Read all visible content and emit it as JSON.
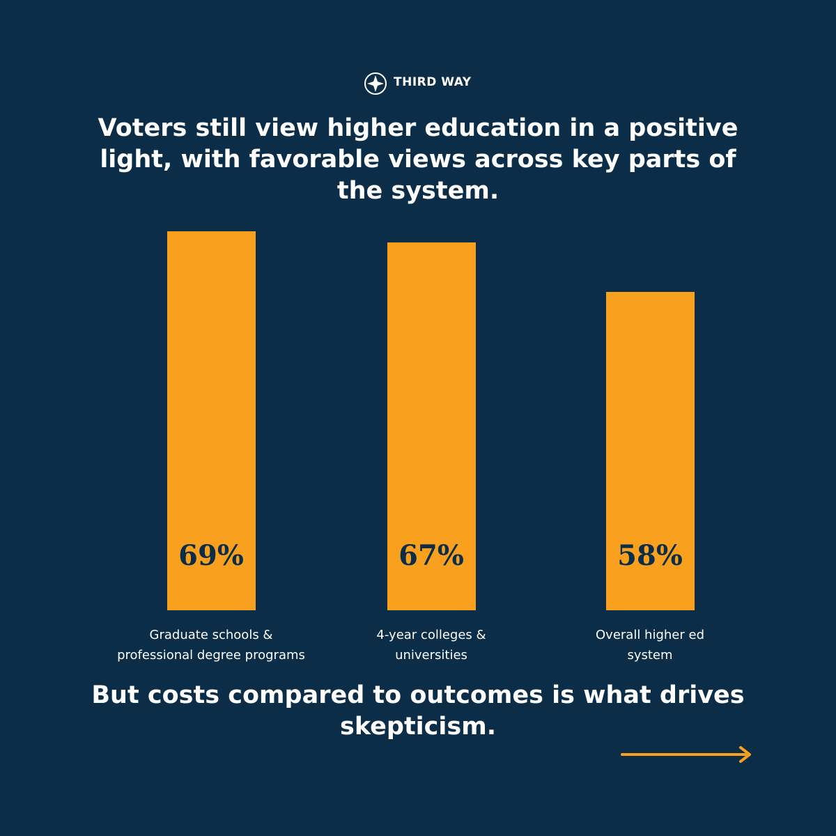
{
  "chart_data": {
    "type": "bar",
    "brand": "THIRD WAY",
    "title": "Voters still view higher education in a positive light, with favorable views across key parts of the system.",
    "categories": [
      "Graduate schools & professional degree programs",
      "4-year colleges & universities",
      "Overall higher ed system"
    ],
    "values": [
      69,
      67,
      58
    ],
    "value_labels": [
      "69%",
      "67%",
      "58%"
    ],
    "color": "#f9a11f",
    "footer": "But costs compared to outcomes is what drives skepticism."
  }
}
